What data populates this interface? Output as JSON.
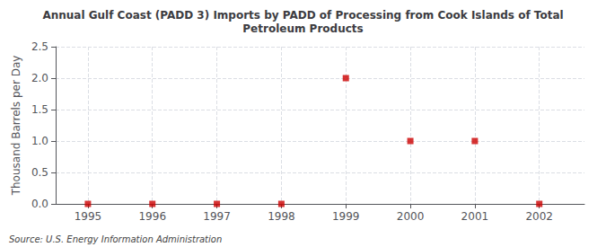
{
  "chart_data": {
    "type": "scatter",
    "title": "Annual Gulf Coast (PADD 3) Imports by PADD of Processing from Cook Islands of Total\nPetroleum Products",
    "ylabel": "Thousand Barrels per Day",
    "annotation": "Source: U.S. Energy Information Administration",
    "x": [
      1995,
      1996,
      1997,
      1998,
      1999,
      2000,
      2001,
      2002
    ],
    "values": [
      0,
      0,
      0,
      0,
      2.0,
      1.0,
      1.0,
      0
    ],
    "color": "#cc0000",
    "marker": "square",
    "xlim": [
      1994.5,
      2002.7
    ],
    "xticks": [
      1995,
      1996,
      1997,
      1998,
      1999,
      2000,
      2001,
      2002
    ],
    "ylim": [
      0,
      2.5
    ],
    "yticks": [
      {
        "value": 0,
        "label": "0.0"
      },
      0.5,
      {
        "value": 1,
        "label": "1.0"
      },
      1.5,
      {
        "value": 2,
        "label": "2.0"
      },
      2.5
    ],
    "grid": true
  }
}
